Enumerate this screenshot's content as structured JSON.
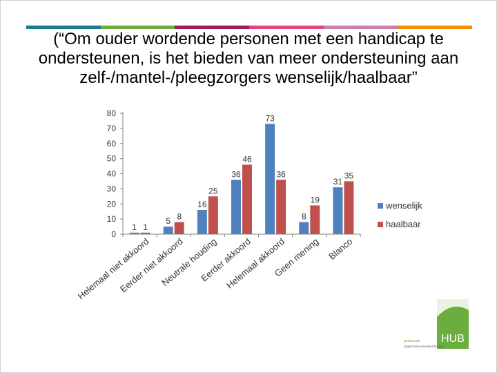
{
  "slide": {
    "title_lines": [
      "(“Om ouder wordende personen met een handicap te",
      "ondersteunen, is het bieden van meer ondersteuning aan",
      "zelf-/mantel-/pleegzorgers wenselijk/haalbaar”"
    ],
    "top_bar_colors": [
      "#1b7a8c",
      "#6cae3e",
      "#a0195a",
      "#e8427a",
      "#c97fb5",
      "#f39200"
    ]
  },
  "logo": {
    "text": "HUB",
    "subtext_line1": "gesteunde",
    "subtext_line2": "hogeschool-universiteit brussel"
  },
  "chart_data": {
    "type": "bar",
    "categories": [
      "Helemaal niet akkoord",
      "Eerder niet akkoord",
      "Neutrale houding",
      "Eerder akkoord",
      "Helemaal akkoord",
      "Geen mening",
      "Blanco"
    ],
    "series": [
      {
        "name": "wenselijk",
        "values": [
          1,
          5,
          16,
          36,
          73,
          8,
          31
        ],
        "color": "#4f81bd"
      },
      {
        "name": "haalbaar",
        "values": [
          1,
          8,
          25,
          46,
          36,
          19,
          35
        ],
        "color": "#c0504d"
      }
    ],
    "ylim": [
      0,
      80
    ],
    "yticks": [
      0,
      10,
      20,
      30,
      40,
      50,
      60,
      70,
      80
    ],
    "grid": false,
    "legend": "right",
    "data_labels": true
  }
}
